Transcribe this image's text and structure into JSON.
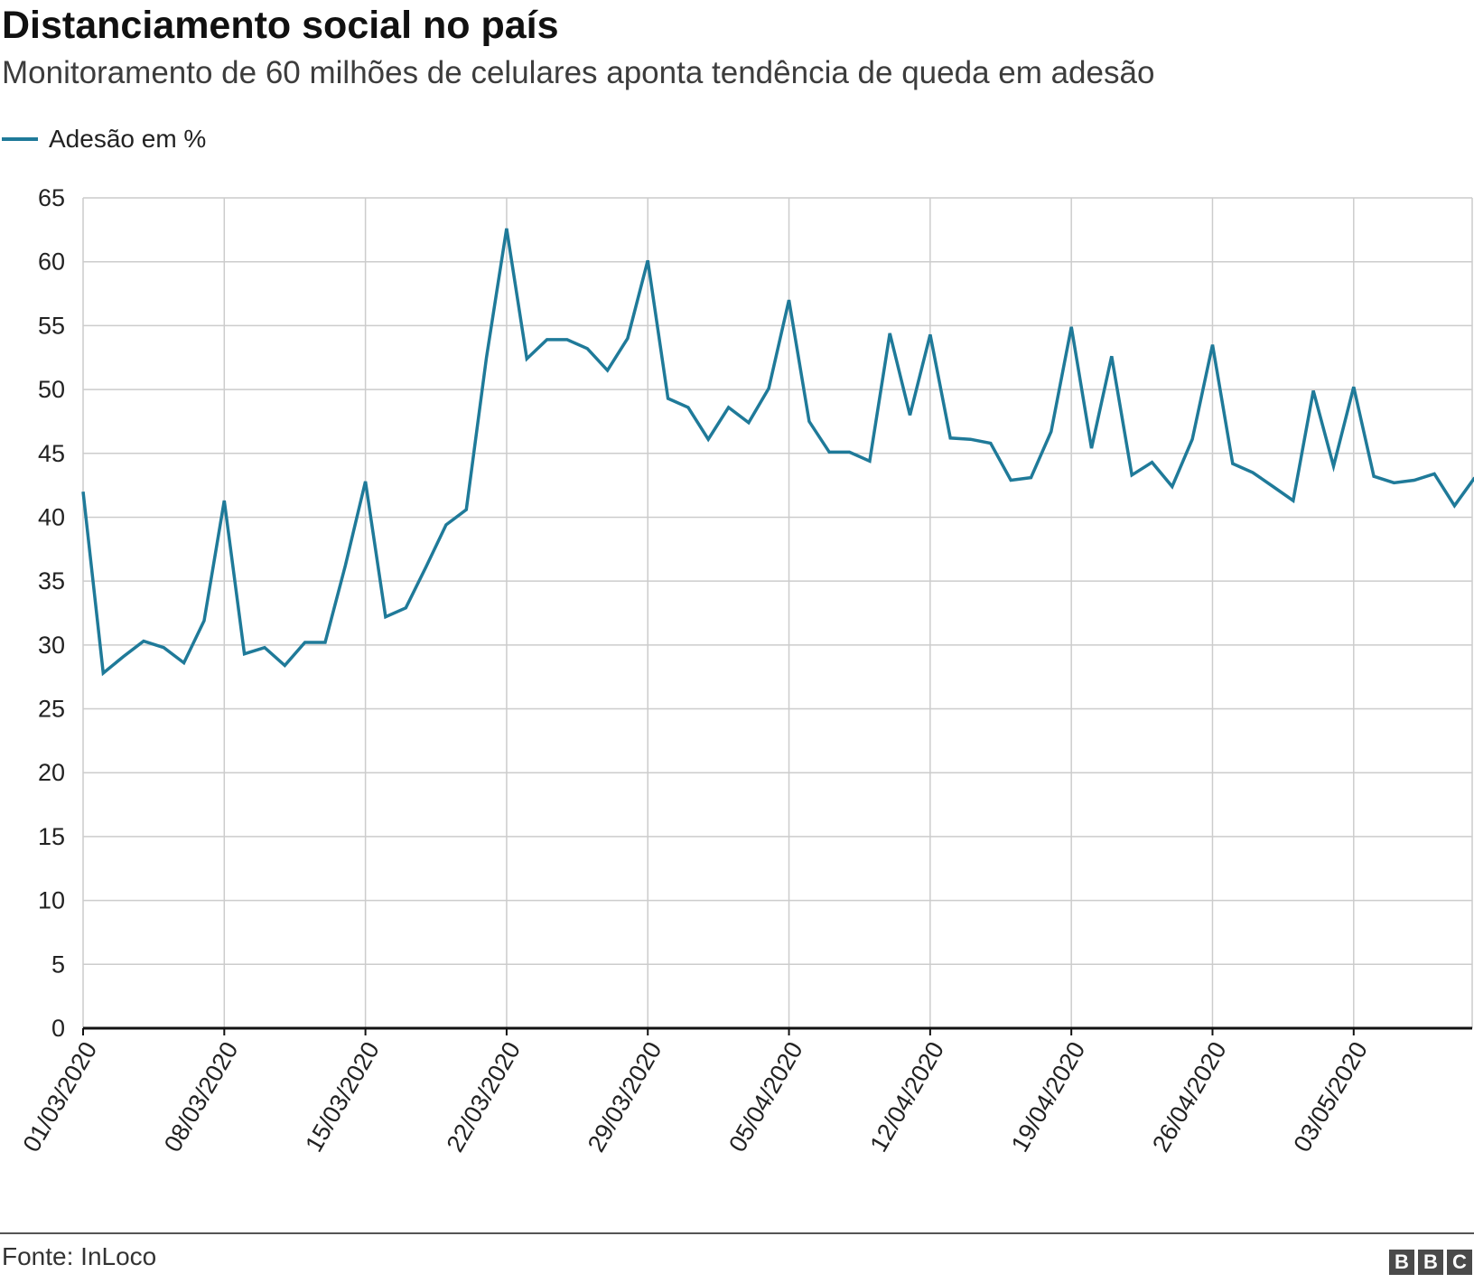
{
  "header": {
    "title": "Distanciamento social no país",
    "subtitle": "Monitoramento de 60 milhões de celulares aponta tendência de queda em adesão"
  },
  "legend": {
    "label": "Adesão em %"
  },
  "footer": {
    "source": "Fonte: InLoco",
    "logo_letters": [
      "B",
      "B",
      "C"
    ]
  },
  "colors": {
    "line": "#1f7a99",
    "grid": "#cccccc",
    "baseline": "#111111"
  },
  "chart_data": {
    "type": "line",
    "series": [
      {
        "name": "Adesão em %",
        "values": [
          42.0,
          27.8,
          29.1,
          30.3,
          29.8,
          28.6,
          31.9,
          41.3,
          29.3,
          29.8,
          28.4,
          30.2,
          30.2,
          36.2,
          42.8,
          32.2,
          32.9,
          36.1,
          39.4,
          40.6,
          52.5,
          62.6,
          52.4,
          53.9,
          53.9,
          53.2,
          51.5,
          54.0,
          60.1,
          49.3,
          48.6,
          46.1,
          48.6,
          47.4,
          50.1,
          57.0,
          47.5,
          45.1,
          45.1,
          44.4,
          54.4,
          48.0,
          54.3,
          46.2,
          46.1,
          45.8,
          42.9,
          43.1,
          46.7,
          54.9,
          45.4,
          52.6,
          43.3,
          44.3,
          42.4,
          46.1,
          53.5,
          44.2,
          43.5,
          42.4,
          41.3,
          49.9,
          44.0,
          50.2,
          43.2,
          42.7,
          42.9,
          43.4,
          40.9,
          43.1
        ]
      }
    ],
    "x_start_date": "01/03/2020",
    "x_tick_labels": [
      "01/03/2020",
      "08/03/2020",
      "15/03/2020",
      "22/03/2020",
      "29/03/2020",
      "05/04/2020",
      "12/04/2020",
      "19/04/2020",
      "26/04/2020",
      "03/05/2020"
    ],
    "y_ticks": [
      0,
      5,
      10,
      15,
      20,
      25,
      30,
      35,
      40,
      45,
      50,
      55,
      60,
      65
    ],
    "ylim": [
      0,
      65
    ],
    "grid": true,
    "legend_position": "top-left"
  }
}
